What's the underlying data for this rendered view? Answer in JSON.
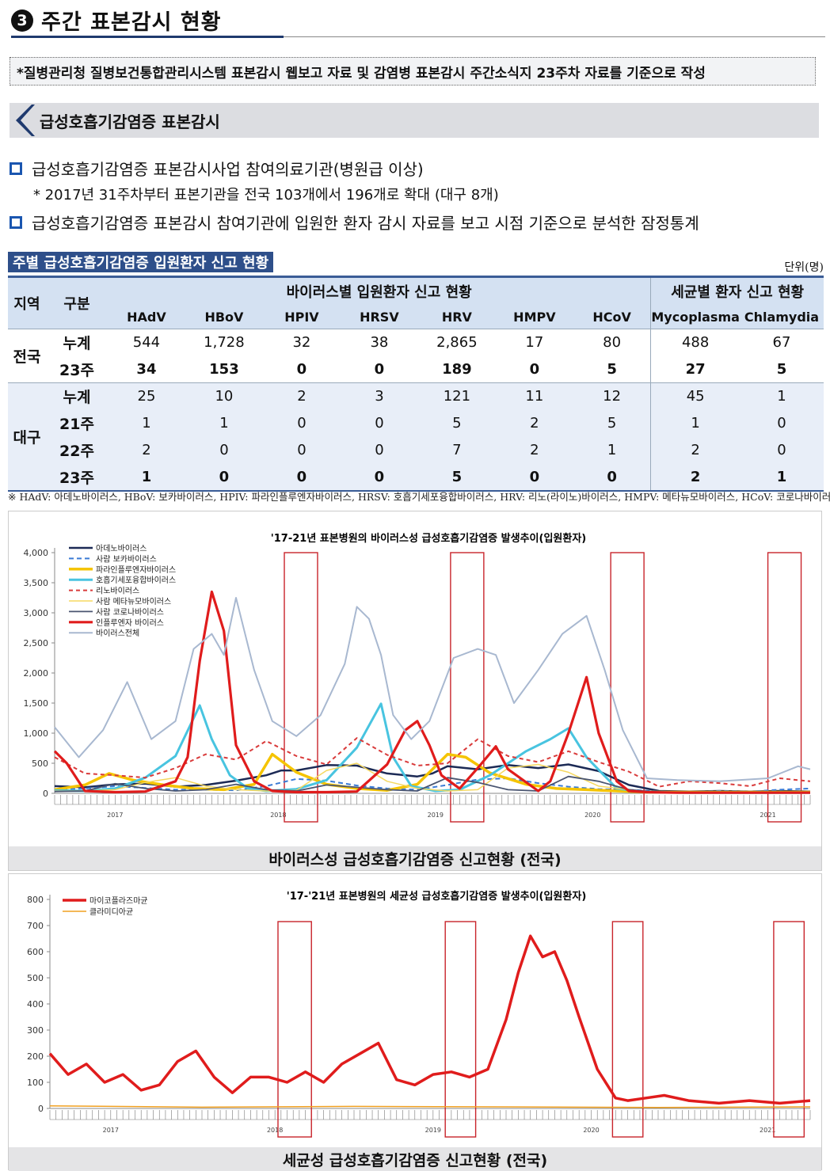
{
  "header": {
    "number": "3",
    "title": "주간 표본감시 현황"
  },
  "note": "*질병관리청 질병보건통합관리시스템 표본감시 웹보고 자료 및 감염병 표본감시 주간소식지 23주차 자료를 기준으로 작성",
  "section": {
    "title": "급성호흡기감염증 표본감시"
  },
  "bullets": {
    "b1": "급성호흡기감염증 표본감시사업 참여의료기관(병원급 이상)",
    "b1_sub": "* 2017년 31주차부터 표본기관을 전국 103개에서 196개로 확대 (대구 8개)",
    "b2": "급성호흡기감염증 표본감시 참여기관에 입원한 환자 감시 자료를 보고 시점 기준으로 분석한 잠정통계"
  },
  "table": {
    "caption": "주별 급성호흡기감염증 입원환자 신고 현황",
    "unit": "단위(명)",
    "col_region": "지역",
    "col_gubun": "구분",
    "group_virus": "바이러스별 입원환자 신고 현황",
    "group_bacteria": "세균별 환자 신고 현황",
    "columns": [
      "HAdV",
      "HBoV",
      "HPIV",
      "HRSV",
      "HRV",
      "HMPV",
      "HCoV",
      "Mycoplasma",
      "Chlamydia"
    ],
    "regions": [
      {
        "name": "전국",
        "rows": [
          {
            "label": "누계",
            "values": [
              "544",
              "1,728",
              "32",
              "38",
              "2,865",
              "17",
              "80",
              "488",
              "67"
            ]
          },
          {
            "label": "23주",
            "values": [
              "34",
              "153",
              "0",
              "0",
              "189",
              "0",
              "5",
              "27",
              "5"
            ]
          }
        ]
      },
      {
        "name": "대구",
        "rows": [
          {
            "label": "누계",
            "values": [
              "25",
              "10",
              "2",
              "3",
              "121",
              "11",
              "12",
              "45",
              "1"
            ]
          },
          {
            "label": "21주",
            "values": [
              "1",
              "1",
              "0",
              "0",
              "5",
              "2",
              "5",
              "1",
              "0"
            ]
          },
          {
            "label": "22주",
            "values": [
              "2",
              "0",
              "0",
              "0",
              "7",
              "2",
              "1",
              "2",
              "0"
            ]
          },
          {
            "label": "23주",
            "values": [
              "1",
              "0",
              "0",
              "0",
              "5",
              "0",
              "0",
              "2",
              "1"
            ]
          }
        ]
      }
    ],
    "footnote": "※ HAdV: 아데노바이러스, HBoV: 보카바이러스, HPIV: 파라인플루엔자바이러스, HRSV: 호흡기세포융합바이러스, HRV: 리노(라이노)바이러스, HMPV: 메타뉴모바이러스, HCoV: 코로나바이러스"
  },
  "chart_data": [
    {
      "type": "line",
      "title": "'17-21년 표본병원의 바이러스성 급성호흡기감염증 발생추이(입원환자)",
      "caption": "바이러스성 급성호흡기감염증 신고현황 (전국)",
      "ylim": [
        0,
        4000
      ],
      "yticks": [
        "0",
        "500",
        "1,000",
        "1,500",
        "2,000",
        "2,500",
        "3,000",
        "3,500",
        "4,000"
      ],
      "x_year_labels": [
        "2017",
        "2018",
        "2019",
        "2020",
        "2021"
      ],
      "legend": "top-left",
      "series": [
        {
          "name": "아데노바이러스",
          "color": "#1c2a55",
          "dash": "none",
          "width": 2.5,
          "x": [
            0,
            10,
            20,
            30,
            40,
            50,
            60,
            70,
            75,
            80,
            90,
            100,
            110,
            120,
            125,
            130,
            140,
            150,
            160,
            170,
            180,
            190,
            200,
            210,
            220,
            230,
            240,
            250
          ],
          "y": [
            120,
            100,
            150,
            160,
            110,
            140,
            210,
            300,
            380,
            380,
            470,
            460,
            330,
            280,
            330,
            450,
            400,
            470,
            420,
            480,
            370,
            140,
            40,
            30,
            40,
            30,
            40,
            30
          ]
        },
        {
          "name": "사람 보카바이러스",
          "color": "#3a7bd5",
          "dash": "6,4",
          "width": 2,
          "x": [
            0,
            10,
            20,
            30,
            40,
            50,
            60,
            70,
            80,
            90,
            100,
            110,
            120,
            130,
            140,
            150,
            160,
            170,
            180,
            190,
            200,
            210,
            220,
            230,
            240,
            250
          ],
          "y": [
            60,
            80,
            120,
            90,
            60,
            60,
            50,
            120,
            240,
            210,
            130,
            80,
            60,
            140,
            230,
            250,
            170,
            110,
            70,
            60,
            30,
            20,
            40,
            30,
            60,
            80
          ]
        },
        {
          "name": "파라인플루엔자바이러스",
          "color": "#f5c400",
          "dash": "none",
          "width": 3.5,
          "x": [
            0,
            10,
            18,
            26,
            36,
            46,
            56,
            66,
            72,
            80,
            90,
            100,
            110,
            120,
            130,
            136,
            144,
            156,
            166,
            176,
            186,
            196,
            210,
            230,
            250
          ],
          "y": [
            60,
            140,
            330,
            220,
            140,
            80,
            60,
            150,
            650,
            350,
            150,
            80,
            50,
            150,
            650,
            600,
            340,
            150,
            80,
            60,
            40,
            20,
            20,
            20,
            20
          ]
        },
        {
          "name": "호흡기세포융합바이러스",
          "color": "#48c4e0",
          "dash": "none",
          "width": 3,
          "x": [
            0,
            10,
            20,
            30,
            40,
            48,
            52,
            58,
            64,
            70,
            80,
            90,
            100,
            108,
            112,
            118,
            126,
            134,
            144,
            150,
            156,
            164,
            170,
            176,
            186,
            196,
            210,
            230,
            250
          ],
          "y": [
            50,
            40,
            80,
            260,
            620,
            1460,
            900,
            300,
            80,
            40,
            70,
            220,
            760,
            1490,
            600,
            120,
            40,
            60,
            300,
            500,
            700,
            900,
            1080,
            600,
            80,
            20,
            10,
            10,
            10
          ]
        },
        {
          "name": "리노바이러스",
          "color": "#d93b3b",
          "dash": "5,4",
          "width": 2,
          "x": [
            0,
            10,
            20,
            30,
            40,
            50,
            60,
            70,
            80,
            90,
            100,
            110,
            120,
            130,
            140,
            150,
            160,
            170,
            180,
            190,
            200,
            210,
            220,
            230,
            240,
            250
          ],
          "y": [
            600,
            330,
            300,
            260,
            420,
            650,
            560,
            870,
            620,
            480,
            920,
            640,
            460,
            500,
            900,
            620,
            520,
            700,
            520,
            360,
            110,
            200,
            170,
            120,
            250,
            200
          ]
        },
        {
          "name": "사람 메타뉴모바이러스",
          "color": "#f5d860",
          "dash": "none",
          "width": 1.5,
          "x": [
            0,
            10,
            20,
            30,
            40,
            50,
            60,
            70,
            80,
            90,
            100,
            110,
            120,
            130,
            140,
            150,
            160,
            170,
            180,
            190,
            200,
            210,
            220,
            230,
            240,
            250
          ],
          "y": [
            40,
            40,
            60,
            180,
            260,
            120,
            60,
            40,
            50,
            380,
            500,
            200,
            80,
            40,
            60,
            420,
            480,
            350,
            120,
            60,
            10,
            10,
            10,
            10,
            10,
            10
          ]
        },
        {
          "name": "사람 코로나바이러스",
          "color": "#4a5570",
          "dash": "none",
          "width": 1.8,
          "x": [
            0,
            10,
            20,
            30,
            40,
            50,
            60,
            70,
            80,
            90,
            100,
            110,
            120,
            130,
            140,
            150,
            160,
            170,
            180,
            190,
            200,
            210,
            220,
            230,
            240,
            250
          ],
          "y": [
            30,
            40,
            160,
            80,
            40,
            60,
            150,
            60,
            40,
            140,
            100,
            60,
            40,
            260,
            180,
            60,
            40,
            280,
            200,
            60,
            20,
            20,
            20,
            20,
            20,
            20
          ]
        },
        {
          "name": "인플루엔자 바이러스",
          "color": "#e01c1c",
          "dash": "none",
          "width": 3.2,
          "x": [
            0,
            4,
            10,
            20,
            30,
            40,
            44,
            48,
            52,
            56,
            60,
            66,
            72,
            80,
            90,
            100,
            110,
            116,
            120,
            124,
            128,
            134,
            140,
            146,
            150,
            160,
            164,
            170,
            176,
            180,
            186,
            190,
            196,
            206,
            220,
            240,
            250
          ],
          "y": [
            700,
            500,
            40,
            20,
            30,
            200,
            600,
            2200,
            3350,
            2700,
            800,
            200,
            40,
            20,
            20,
            30,
            480,
            1050,
            1200,
            800,
            300,
            80,
            420,
            780,
            400,
            40,
            200,
            1000,
            1930,
            1000,
            200,
            40,
            20,
            10,
            10,
            10,
            10
          ]
        },
        {
          "name": "바이러스전체",
          "color": "#a8b8d0",
          "dash": "none",
          "width": 2,
          "x": [
            0,
            8,
            16,
            24,
            32,
            40,
            46,
            52,
            56,
            60,
            66,
            72,
            80,
            88,
            96,
            100,
            104,
            108,
            112,
            118,
            124,
            132,
            140,
            146,
            152,
            160,
            168,
            176,
            182,
            188,
            196,
            206,
            220,
            236,
            246,
            250
          ],
          "y": [
            1100,
            600,
            1050,
            1850,
            900,
            1200,
            2400,
            2650,
            2300,
            3250,
            2050,
            1200,
            950,
            1300,
            2150,
            3100,
            2900,
            2300,
            1300,
            900,
            1200,
            2250,
            2400,
            2300,
            1500,
            2050,
            2650,
            2950,
            2050,
            1050,
            250,
            220,
            200,
            250,
            450,
            400
          ]
        }
      ]
    },
    {
      "type": "line",
      "title": "'17-'21년 표본병원의 세균성 급성호흡기감염증 발생추이(입원환자)",
      "caption": "세균성 급성호흡기감염증 신고현황 (전국)",
      "ylim": [
        0,
        800
      ],
      "yticks": [
        "0",
        "100",
        "200",
        "300",
        "400",
        "500",
        "600",
        "700",
        "800"
      ],
      "x_year_labels": [
        "2017",
        "2018",
        "2019",
        "2020",
        "2021"
      ],
      "legend": "top-left",
      "series": [
        {
          "name": "마이코플라즈마균",
          "color": "#e01c1c",
          "width": 3.5,
          "x": [
            0,
            6,
            12,
            18,
            24,
            30,
            36,
            42,
            48,
            54,
            60,
            66,
            72,
            78,
            84,
            90,
            96,
            102,
            108,
            114,
            120,
            126,
            132,
            138,
            144,
            150,
            154,
            158,
            162,
            166,
            170,
            174,
            180,
            186,
            190,
            196,
            202,
            210,
            220,
            230,
            240,
            250
          ],
          "y": [
            210,
            130,
            170,
            100,
            130,
            70,
            90,
            180,
            220,
            120,
            60,
            120,
            120,
            100,
            140,
            100,
            170,
            210,
            250,
            110,
            90,
            130,
            140,
            120,
            150,
            340,
            520,
            660,
            580,
            600,
            490,
            350,
            150,
            40,
            30,
            40,
            50,
            30,
            20,
            30,
            20,
            30
          ]
        },
        {
          "name": "클라미디아균",
          "color": "#f0a020",
          "width": 1.5,
          "x": [
            0,
            50,
            100,
            150,
            200,
            250
          ],
          "y": [
            10,
            5,
            8,
            6,
            4,
            6
          ]
        }
      ]
    }
  ]
}
